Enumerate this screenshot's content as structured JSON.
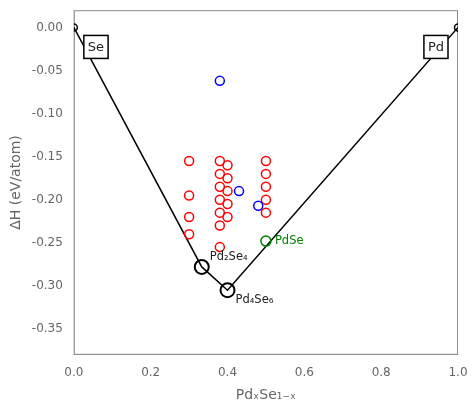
{
  "chart_data": {
    "type": "scatter",
    "xlabel": "PdₓSe₁₋ₓ",
    "ylabel": "ΔH (eV/atom)",
    "xlim": [
      0.0,
      1.0
    ],
    "ylim": [
      -0.38,
      0.02
    ],
    "xticks": [
      {
        "value": 0.0,
        "label": "0.0"
      },
      0.2,
      0.4,
      0.6,
      0.8,
      {
        "value": 1.0,
        "label": "1.0"
      }
    ],
    "yticks": [
      {
        "value": 0.0,
        "label": "0.00"
      },
      {
        "value": -0.05,
        "label": "-0.05"
      },
      {
        "value": -0.1,
        "label": "-0.10"
      },
      {
        "value": -0.15,
        "label": "-0.15"
      },
      {
        "value": -0.2,
        "label": "-0.20"
      },
      {
        "value": -0.25,
        "label": "-0.25"
      },
      {
        "value": -0.3,
        "label": "-0.30"
      },
      {
        "value": -0.35,
        "label": "-0.35"
      }
    ],
    "grid": false,
    "series": [
      {
        "type": "line",
        "color": "black",
        "marker": "none",
        "line_style": "solid",
        "x": [
          0.0,
          0.333,
          0.4,
          1.0
        ],
        "values": [
          0.0,
          -0.278,
          -0.305,
          0.0
        ]
      },
      {
        "color": "red",
        "marker": "circle",
        "x": [
          0.3,
          0.3,
          0.3,
          0.3,
          0.38,
          0.38,
          0.38,
          0.38,
          0.38,
          0.38,
          0.38,
          0.4,
          0.4,
          0.4,
          0.4,
          0.4,
          0.5,
          0.5,
          0.5,
          0.5,
          0.5
        ],
        "values": [
          -0.155,
          -0.195,
          -0.22,
          -0.24,
          -0.155,
          -0.17,
          -0.185,
          -0.2,
          -0.215,
          -0.23,
          -0.255,
          -0.16,
          -0.175,
          -0.19,
          -0.205,
          -0.22,
          -0.155,
          -0.17,
          -0.185,
          -0.2,
          -0.215
        ]
      },
      {
        "color": "blue",
        "marker": "circle",
        "x": [
          0.38,
          0.43,
          0.48
        ],
        "values": [
          -0.062,
          -0.19,
          -0.207
        ]
      },
      {
        "color": "green",
        "marker": "circle",
        "x": [
          0.5
        ],
        "values": [
          -0.248
        ]
      },
      {
        "color": "black",
        "marker": "circle",
        "x": [
          0.333,
          0.4
        ],
        "values": [
          -0.278,
          -0.305
        ]
      },
      {
        "color": "black",
        "marker": "circle",
        "x": [
          0.0,
          1.0
        ],
        "values": [
          0.0,
          0.0
        ]
      }
    ],
    "annotations": [
      {
        "text": "PdSe",
        "x": 0.5,
        "y": -0.248,
        "color": "green"
      },
      {
        "text": "Pd₂Se₄",
        "x": 0.333,
        "y": -0.278
      },
      {
        "text": "Pd₄Se₆",
        "x": 0.4,
        "y": -0.305
      },
      {
        "text": "Se",
        "x": 0.0,
        "y": 0.0
      },
      {
        "text": "Pd",
        "x": 1.0,
        "y": 0.0
      }
    ]
  }
}
